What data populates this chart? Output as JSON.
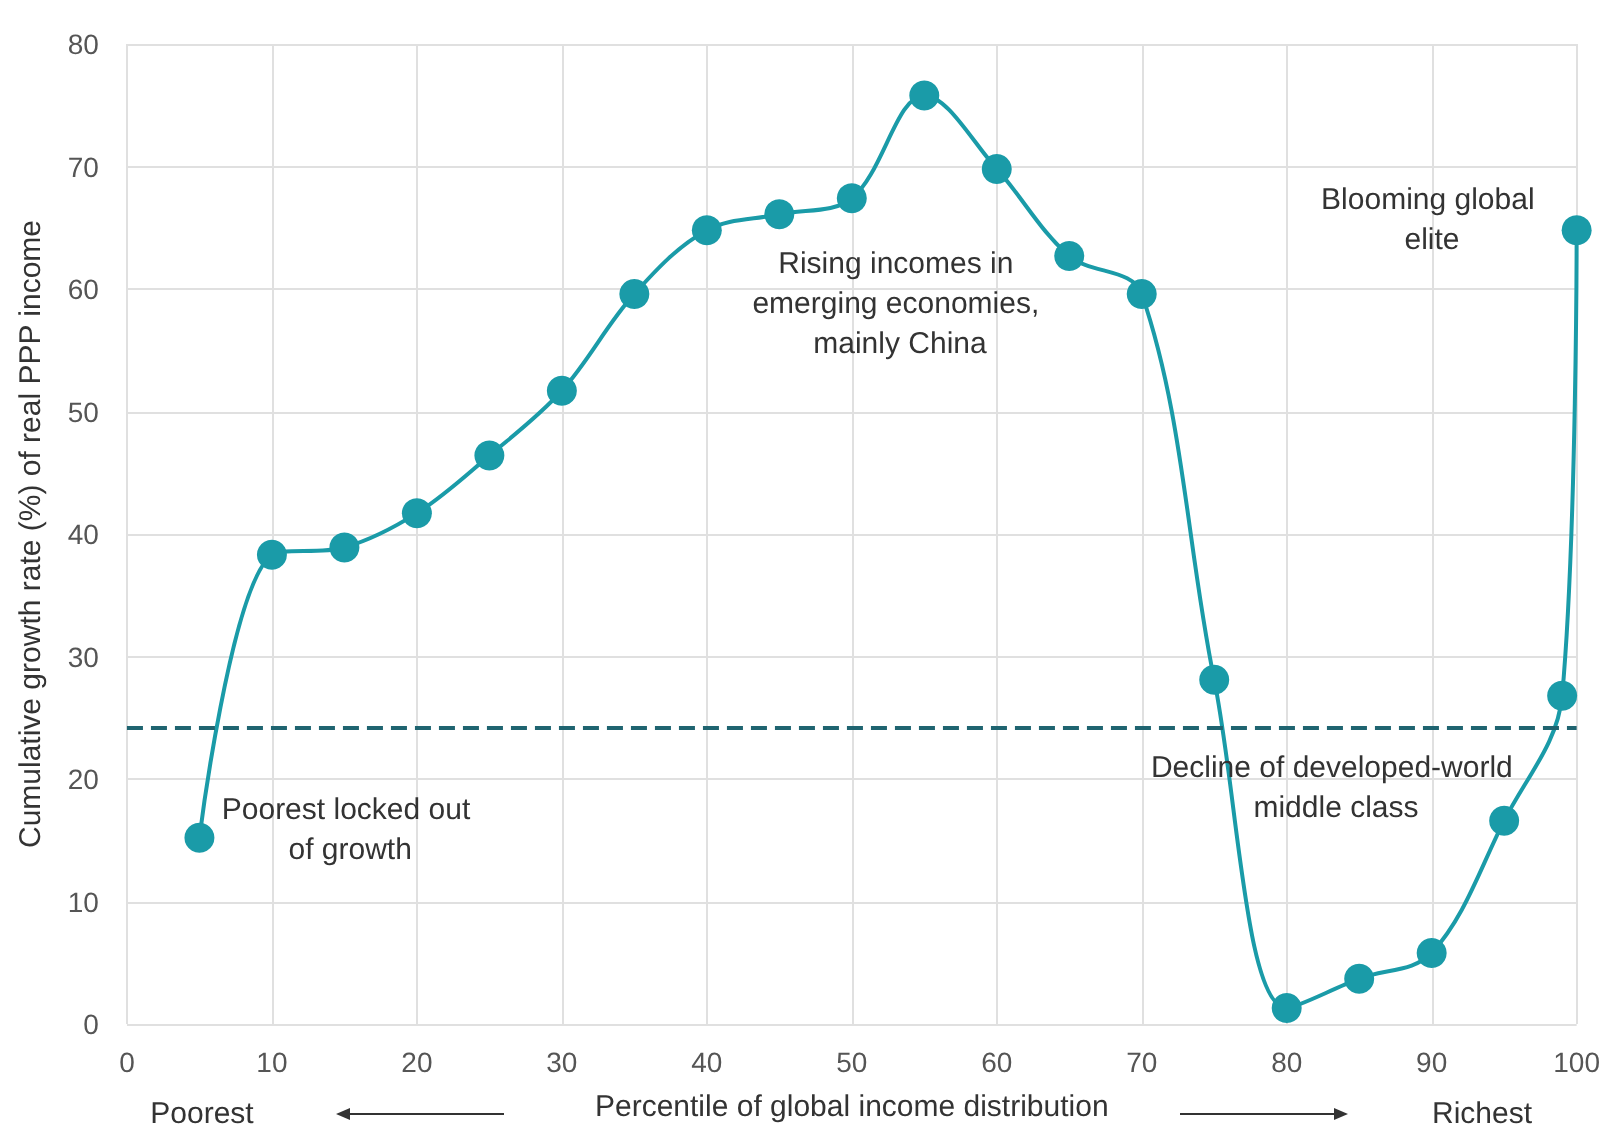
{
  "chart_data": {
    "type": "line",
    "xlabel": "Percentile of global income distribution",
    "ylabel": "Cumulative growth rate (%) of real PPP income",
    "x": [
      5,
      10,
      15,
      20,
      25,
      30,
      35,
      40,
      45,
      50,
      55,
      60,
      65,
      70,
      75,
      80,
      85,
      90,
      95,
      99,
      100
    ],
    "series": [
      {
        "color": "#1a9ba8",
        "values": [
          15.2,
          38.3,
          38.9,
          41.7,
          46.4,
          51.7,
          59.6,
          64.8,
          66.1,
          67.4,
          75.8,
          69.8,
          62.7,
          59.6,
          28.1,
          1.3,
          3.7,
          5.8,
          16.6,
          26.8,
          64.8
        ]
      }
    ],
    "xlim": [
      0,
      100
    ],
    "xticks": [
      0,
      10,
      20,
      30,
      40,
      50,
      60,
      70,
      80,
      90,
      100
    ],
    "ylim": [
      0,
      80
    ],
    "yticks": [
      0,
      10,
      20,
      30,
      40,
      50,
      60,
      70,
      80
    ],
    "ref_lines": [
      {
        "axis": "y",
        "value": 24.2,
        "color": "#1f6470",
        "line_style": "dashed"
      }
    ],
    "annotations": [
      "Poorest locked out of growth",
      "Rising incomes in emerging economies, mainly China",
      "Decline of developed-world middle class",
      "Blooming global elite",
      "Poorest",
      "Richest"
    ],
    "grid": true,
    "marker": "circle",
    "line_style": "solid"
  }
}
